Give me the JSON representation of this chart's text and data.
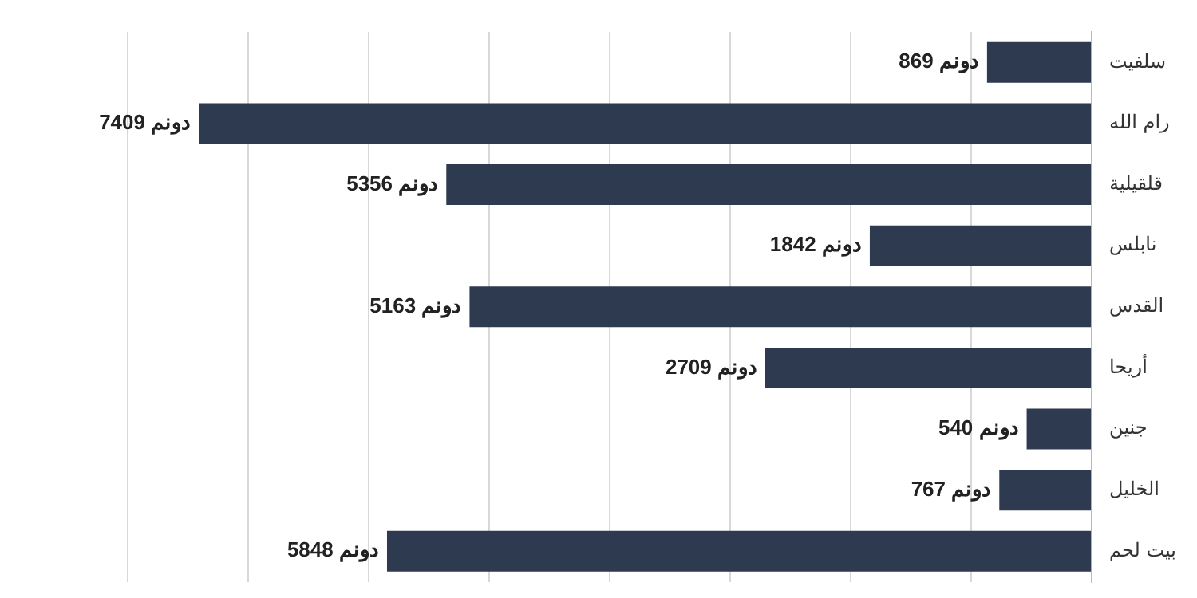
{
  "chart_data": {
    "type": "bar",
    "orientation": "horizontal",
    "categories": [
      "سلفيت",
      "رام الله",
      "قلقيلية",
      "نابلس",
      "القدس",
      "أريحا",
      "جنين",
      "الخليل",
      "بيت لحم"
    ],
    "values": [
      869,
      7409,
      5356,
      1842,
      5163,
      2709,
      540,
      767,
      5848
    ],
    "value_labels": [
      "869 دونم",
      "7409 دونم",
      "5356 دونم",
      "دونم 1842",
      "5163 دونم",
      "2709 دونم",
      "540 دونم",
      "767 دونم",
      "5848 دونم"
    ],
    "color": "#2e3a4f",
    "grid": "x",
    "tick_labels": "y"
  }
}
